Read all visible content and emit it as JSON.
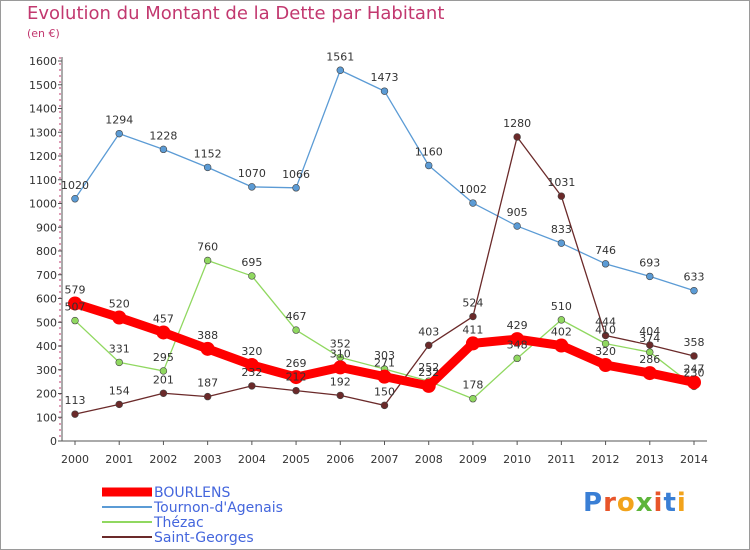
{
  "title": "Evolution du Montant de la Dette par Habitant",
  "subtitle": "(en €)",
  "logo": {
    "text": "Proxiti",
    "colors": [
      "#3a7fd5",
      "#e8552a",
      "#f2a31b",
      "#5db53a",
      "#e8552a",
      "#3a7fd5",
      "#f2a31b"
    ]
  },
  "chart_data": {
    "type": "line",
    "x": [
      "2000",
      "2001",
      "2002",
      "2003",
      "2004",
      "2005",
      "2006",
      "2007",
      "2008",
      "2009",
      "2010",
      "2011",
      "2012",
      "2013",
      "2014"
    ],
    "ylim": [
      0,
      1600
    ],
    "yticks": [
      0,
      100,
      200,
      300,
      400,
      500,
      600,
      700,
      800,
      900,
      1000,
      1100,
      1200,
      1300,
      1400,
      1500,
      1600
    ],
    "grid": false,
    "legend_position": "bottom-left",
    "series": [
      {
        "name": "Tournon-d'Agenais",
        "color": "#5b9bd5",
        "values": [
          1020,
          1294,
          1228,
          1152,
          1070,
          1066,
          1561,
          1473,
          1160,
          1002,
          905,
          833,
          746,
          693,
          633
        ]
      },
      {
        "name": "Thézac",
        "color": "#90d860",
        "values": [
          507,
          331,
          295,
          760,
          695,
          467,
          352,
          303,
          252,
          178,
          348,
          510,
          410,
          374,
          230
        ]
      },
      {
        "name": "Saint-Georges",
        "color": "#6b2a2a",
        "values": [
          113,
          154,
          201,
          187,
          232,
          212,
          192,
          150,
          403,
          524,
          1280,
          1031,
          444,
          404,
          358
        ]
      },
      {
        "name": "BOURLENS",
        "color": "#ff0000",
        "values": [
          579,
          520,
          457,
          388,
          320,
          269,
          310,
          271,
          232,
          411,
          429,
          402,
          320,
          286,
          247
        ]
      }
    ],
    "legend_order": [
      "BOURLENS",
      "Tournon-d'Agenais",
      "Thézac",
      "Saint-Georges"
    ],
    "data_labels": {
      "BOURLENS": [
        "579",
        "520",
        "457",
        "388",
        "320",
        "269",
        "310",
        "271",
        "232",
        "411",
        "429",
        "402",
        "320",
        "286",
        "247"
      ],
      "Tournon-d'Agenais": [
        "1020",
        "1294",
        "1228",
        "1152",
        "1070",
        "1066",
        "1561",
        "1473",
        "1160",
        "1002",
        "905",
        "833",
        "746",
        "693",
        "633"
      ],
      "Thézac": [
        "507",
        "331",
        "295",
        "760",
        "695",
        "467",
        "352",
        "303",
        "252",
        "178",
        "348",
        "510",
        "410",
        "374",
        "230"
      ],
      "Saint-Georges": [
        "113",
        "154",
        "201",
        "187",
        "232",
        "212",
        "192",
        "150",
        "403",
        "524",
        "1280",
        "1031",
        "444",
        "404",
        "358"
      ]
    }
  }
}
